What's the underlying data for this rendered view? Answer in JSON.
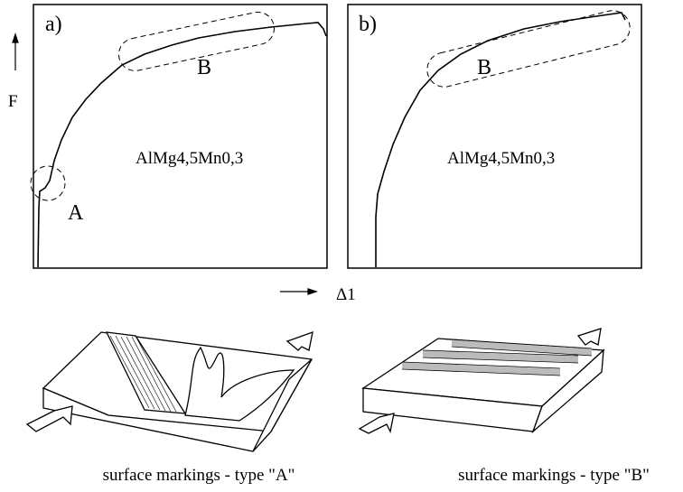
{
  "axes": {
    "y_label": "F",
    "x_label": "Δ1"
  },
  "panels": [
    {
      "label": "a)",
      "material": "AlMg4,5Mn0,3",
      "regions": [
        "A",
        "B"
      ]
    },
    {
      "label": "b)",
      "material": "AlMg4,5Mn0,3",
      "regions": [
        "B"
      ]
    }
  ],
  "captions": [
    "surface markings - type \"A\"",
    "surface markings - type \"B\""
  ]
}
